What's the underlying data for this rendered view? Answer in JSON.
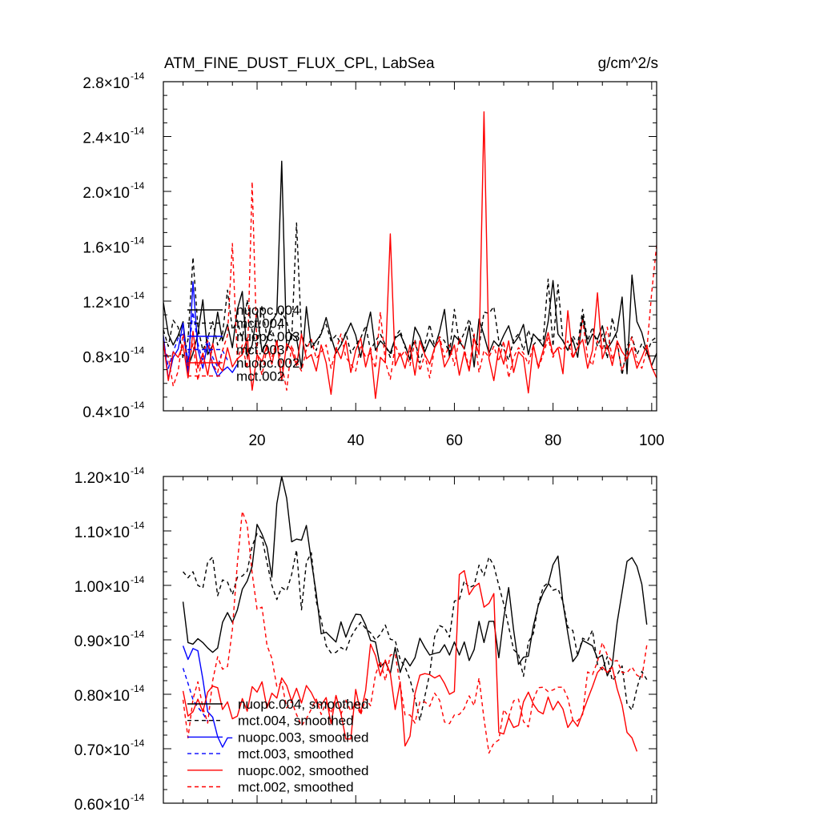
{
  "chart_data": [
    {
      "type": "line",
      "title": "ATM_FINE_DUST_FLUX_CPL, LabSea",
      "units": "g/cm^2/s",
      "xlim": [
        1,
        101
      ],
      "ylim": [
        0.4,
        2.8
      ],
      "y_exponent": "-14",
      "x_ticks": [
        20,
        40,
        60,
        80,
        100
      ],
      "x_tick_labels": [
        "20",
        "40",
        "60",
        "80",
        "100"
      ],
      "y_ticks": [
        0.4,
        0.8,
        1.2,
        1.6,
        2.0,
        2.4,
        2.8
      ],
      "y_tick_labels": [
        "0.4",
        "0.8",
        "1.2",
        "1.6",
        "2.0",
        "2.4",
        "2.8"
      ],
      "legend_position": "left-middle",
      "series": [
        {
          "name": "nuopc.004",
          "color": "#000000",
          "dash": "solid",
          "x0": 1,
          "values": [
            1.19,
            0.96,
            0.88,
            0.95,
            1.05,
            0.72,
            0.82,
            0.96,
            1.21,
            0.81,
            0.88,
            1.12,
            0.91,
            1.03,
            0.86,
            1.14,
            1.27,
            0.79,
            0.88,
            1.12,
            0.83,
            0.91,
            1.05,
            1.11,
            2.22,
            0.84,
            0.96,
            0.93,
            0.71,
            1.16,
            0.86,
            0.91,
            0.96,
            1.08,
            0.94,
            0.82,
            0.88,
            0.96,
            1.04,
            0.95,
            0.79,
            0.97,
            1.12,
            0.84,
            0.91,
            0.87,
            0.82,
            0.93,
            0.96,
            0.88,
            0.77,
            1.01,
            0.94,
            0.83,
            0.92,
            0.86,
            0.98,
            1.14,
            0.79,
            0.95,
            0.91,
            0.85,
            1.02,
            0.72,
            1.07,
            0.95,
            0.82,
            0.91,
            0.87,
            0.95,
            1.02,
            0.89,
            0.94,
            1.03,
            0.81,
            0.96,
            0.92,
            0.87,
            1.05,
            1.35,
            0.96,
            0.91,
            0.84,
            0.92,
            0.79,
            1.09,
            0.88,
            0.96,
            0.92,
            1.02,
            0.85,
            0.91,
            0.98,
            1.23,
            0.67,
            1.39,
            1.05,
            0.97,
            0.83,
            0.73,
            0.82
          ]
        },
        {
          "name": "mct.004",
          "color": "#000000",
          "dash": "dashed",
          "x0": 1,
          "values": [
            0.99,
            0.87,
            1.06,
            1.01,
            0.78,
            0.92,
            1.52,
            1.01,
            0.84,
            0.93,
            1.05,
            0.88,
            0.96,
            1.28,
            0.99,
            1.06,
            0.91,
            1.21,
            0.98,
            0.86,
            1.17,
            0.93,
            0.99,
            0.88,
            1.12,
            1.05,
            0.91,
            1.77,
            0.95,
            0.87,
            0.92,
            0.84,
            0.98,
            1.03,
            0.91,
            0.95,
            0.89,
            0.97,
            0.82,
            0.88,
            0.93,
            1.02,
            0.84,
            0.91,
            0.96,
            0.88,
            0.79,
            0.94,
            0.99,
            0.86,
            0.83,
            0.92,
            0.75,
            0.88,
            1.03,
            0.87,
            0.94,
            0.91,
            0.82,
            1.14,
            0.89,
            0.97,
            1.07,
            0.93,
            0.86,
            1.12,
            1.11,
            1.16,
            0.91,
            0.85,
            0.77,
            0.92,
            0.96,
            0.84,
            0.99,
            0.88,
            0.92,
            0.91,
            1.36,
            0.87,
            1.32,
            0.91,
            0.84,
            0.95,
            0.88,
            1.14,
            0.91,
            1.01,
            0.87,
            0.96,
            0.78,
            1.08,
            0.91,
            0.66,
            0.87,
            0.94,
            0.81,
            0.89,
            0.82,
            0.91,
            0.94
          ]
        },
        {
          "name": "nuopc.003",
          "color": "#0000ff",
          "dash": "solid",
          "x0": 1,
          "values": [
            0.95,
            0.63,
            0.79,
            0.85,
            1.04,
            0.66,
            1.34,
            0.85,
            0.71,
            0.89,
            0.73,
            0.65,
            0.69,
            0.72,
            0.68,
            0.74
          ]
        },
        {
          "name": "mct.003",
          "color": "#0000ff",
          "dash": "dashed",
          "x0": 1,
          "values": [
            0.92,
            0.71,
            0.83,
            0.93,
            0.96,
            0.77,
            1.12,
            0.89,
            0.76,
            0.94,
            0.79,
            0.72,
            0.84,
            0.77
          ]
        },
        {
          "name": "nuopc.002",
          "color": "#ff0000",
          "dash": "solid",
          "x0": 1,
          "values": [
            0.91,
            0.62,
            0.83,
            0.79,
            0.88,
            0.64,
            0.98,
            0.71,
            0.82,
            0.66,
            0.89,
            0.74,
            0.69,
            0.86,
            0.72,
            0.78,
            0.81,
            0.93,
            0.55,
            0.81,
            0.76,
            0.88,
            0.74,
            0.91,
            0.62,
            0.89,
            0.84,
            0.73,
            0.96,
            0.78,
            0.81,
            0.69,
            0.88,
            0.75,
            0.52,
            0.86,
            0.78,
            0.91,
            0.68,
            0.84,
            0.93,
            0.72,
            0.86,
            0.49,
            0.79,
            0.75,
            1.69,
            0.73,
            0.82,
            0.71,
            0.88,
            0.66,
            0.91,
            0.81,
            0.74,
            0.86,
            0.92,
            0.72,
            0.79,
            0.88,
            0.66,
            0.83,
            0.69,
            0.93,
            0.81,
            2.58,
            0.78,
            0.62,
            0.86,
            0.74,
            0.91,
            0.68,
            0.83,
            0.79,
            0.53,
            0.88,
            0.72,
            0.84,
            0.97,
            0.81,
            0.86,
            0.67,
            1.13,
            0.79,
            0.86,
            0.92,
            0.71,
            0.84,
            1.26,
            0.78,
            0.88,
            0.73,
            0.91,
            0.83,
            0.78,
            0.86,
            0.71,
            0.79,
            0.88,
            0.72,
            0.64
          ]
        },
        {
          "name": "mct.002",
          "color": "#ff0000",
          "dash": "dashed",
          "x0": 1,
          "values": [
            0.86,
            0.79,
            0.58,
            0.69,
            0.96,
            0.73,
            0.89,
            0.62,
            0.81,
            0.91,
            0.74,
            0.68,
            0.84,
            0.95,
            1.62,
            0.77,
            0.88,
            0.71,
            2.07,
            0.82,
            0.66,
            0.86,
            0.79,
            0.91,
            0.74,
            0.55,
            0.88,
            0.76,
            0.69,
            0.85,
            0.92,
            0.78,
            0.83,
            0.88,
            0.71,
            0.84,
            0.96,
            0.79,
            0.74,
            0.69,
            0.88,
            0.79,
            0.82,
            0.71,
            1.12,
            0.76,
            0.63,
            0.88,
            0.79,
            0.84,
            0.73,
            0.91,
            0.69,
            0.81,
            0.64,
            0.86,
            0.94,
            0.79,
            0.88,
            0.73,
            0.93,
            0.85,
            0.71,
            0.96,
            0.68,
            0.84,
            0.79,
            0.87,
            0.76,
            0.91,
            0.64,
            0.79,
            0.86,
            0.82,
            0.74,
            0.88,
            0.71,
            0.81,
            0.93,
            0.79,
            0.87,
            0.84,
            0.91,
            0.78,
            0.86,
            1.06,
            0.79,
            0.73,
            0.91,
            0.84,
            1.01,
            0.77,
            0.88,
            0.69,
            0.82,
            0.94,
            0.76,
            0.71,
            0.84,
            1.26,
            1.61
          ]
        }
      ]
    },
    {
      "type": "line",
      "title": "",
      "xlim": [
        1,
        101
      ],
      "ylim": [
        0.6,
        1.2
      ],
      "y_exponent": "-14",
      "x_ticks": [
        20,
        40,
        60,
        80,
        100
      ],
      "y_ticks": [
        0.6,
        0.7,
        0.8,
        0.9,
        1.0,
        1.1,
        1.2
      ],
      "y_tick_labels": [
        "0.60",
        "0.70",
        "0.80",
        "0.90",
        "1.00",
        "1.10",
        "1.20"
      ],
      "legend_position": "bottom-left",
      "series": [
        {
          "name": "nuopc.004, smoothed",
          "color": "#000000",
          "dash": "solid",
          "x0": 5,
          "values": [
            0.97,
            0.895,
            0.892,
            0.902,
            0.895,
            0.885,
            0.877,
            0.885,
            0.932,
            0.95,
            0.932,
            0.955,
            0.993,
            1.008,
            1.035,
            1.112,
            1.094,
            1.07,
            1.015,
            1.15,
            1.2,
            1.16,
            1.08,
            1.085,
            1.083,
            1.11,
            1.045,
            0.984,
            0.911,
            0.914,
            0.905,
            0.896,
            0.933,
            0.905,
            0.929,
            0.947,
            0.946,
            0.927,
            0.899,
            0.896,
            0.85,
            0.86,
            0.838,
            0.886,
            0.84,
            0.866,
            0.852,
            0.867,
            0.903,
            0.886,
            0.872,
            0.875,
            0.877,
            0.891,
            0.872,
            0.896,
            0.872,
            0.896,
            0.862,
            0.882,
            0.934,
            0.895,
            0.934,
            0.934,
            0.867,
            0.94,
            0.996,
            0.918,
            0.855,
            0.868,
            0.87,
            0.925,
            0.963,
            0.986,
            1.002,
            1.038,
            1.054,
            0.968,
            0.912,
            0.86,
            0.872,
            0.899,
            0.894,
            0.889,
            0.866,
            0.872,
            0.834,
            0.854,
            0.932,
            0.988,
            1.044,
            1.051,
            1.035,
            1.002,
            0.928
          ]
        },
        {
          "name": "mct.004, smoothed",
          "color": "#000000",
          "dash": "dashed",
          "x0": 5,
          "values": [
            1.025,
            1.014,
            1.025,
            1.0,
            0.995,
            1.043,
            1.052,
            0.981,
            1.01,
            1.006,
            0.983,
            1.015,
            1.017,
            1.026,
            1.072,
            1.095,
            1.087,
            1.042,
            1.0,
            0.974,
            0.996,
            0.99,
            1.02,
            1.065,
            0.955,
            1.042,
            1.06,
            0.97,
            0.937,
            0.889,
            0.876,
            0.877,
            0.886,
            0.88,
            0.905,
            0.92,
            0.932,
            0.921,
            0.913,
            0.9,
            0.91,
            0.927,
            0.901,
            0.899,
            0.864,
            0.85,
            0.827,
            0.793,
            0.752,
            0.796,
            0.838,
            0.906,
            0.926,
            0.922,
            0.905,
            0.971,
            0.974,
            1.008,
            0.996,
            1.0,
            1.037,
            1.018,
            1.052,
            1.036,
            1.0,
            0.966,
            0.924,
            0.882,
            0.873,
            0.833,
            0.896,
            0.911,
            0.965,
            0.997,
            1.005,
            0.991,
            0.994,
            0.97,
            0.923,
            0.917,
            0.871,
            0.903,
            0.898,
            0.918,
            0.855,
            0.845,
            0.869,
            0.825,
            0.836,
            0.852,
            0.783,
            0.771,
            0.811,
            0.842,
            0.827
          ]
        },
        {
          "name": "nuopc.003, smoothed",
          "color": "#0000ff",
          "dash": "solid",
          "x0": 5,
          "values": [
            0.889,
            0.864,
            0.884,
            0.88,
            0.828,
            0.768,
            0.758,
            0.722,
            0.703,
            0.72,
            0.72
          ]
        },
        {
          "name": "mct.003, smoothed",
          "color": "#0000ff",
          "dash": "dashed",
          "x0": 5,
          "values": [
            0.848,
            0.82,
            0.79,
            0.776,
            0.765,
            0.75
          ]
        },
        {
          "name": "nuopc.002, smoothed",
          "color": "#ff0000",
          "dash": "solid",
          "x0": 5,
          "values": [
            0.806,
            0.76,
            0.768,
            0.791,
            0.768,
            0.804,
            0.815,
            0.812,
            0.772,
            0.786,
            0.755,
            0.76,
            0.792,
            0.769,
            0.814,
            0.804,
            0.823,
            0.775,
            0.802,
            0.793,
            0.83,
            0.816,
            0.787,
            0.811,
            0.784,
            0.816,
            0.803,
            0.784,
            0.78,
            0.794,
            0.746,
            0.798,
            0.764,
            0.718,
            0.718,
            0.809,
            0.765,
            0.807,
            0.892,
            0.871,
            0.834,
            0.863,
            0.838,
            0.772,
            0.823,
            0.705,
            0.723,
            0.801,
            0.835,
            0.838,
            0.836,
            0.83,
            0.835,
            0.82,
            0.8,
            0.805,
            1.02,
            1.027,
            0.983,
            0.997,
            1.004,
            0.96,
            0.967,
            0.985,
            0.73,
            0.727,
            0.757,
            0.739,
            0.743,
            0.786,
            0.804,
            0.782,
            0.769,
            0.764,
            0.795,
            0.771,
            0.787,
            0.773,
            0.739,
            0.753,
            0.741,
            0.766,
            0.791,
            0.814,
            0.84,
            0.85,
            0.84,
            0.85,
            0.81,
            0.78,
            0.73,
            0.72,
            0.695
          ]
        },
        {
          "name": "mct.002, smoothed",
          "color": "#ff0000",
          "dash": "dashed",
          "x0": 5,
          "values": [
            0.79,
            0.72,
            0.791,
            0.823,
            0.776,
            0.747,
            0.825,
            0.869,
            0.846,
            0.851,
            0.919,
            1.04,
            1.136,
            1.111,
            1.022,
            0.956,
            0.96,
            0.89,
            0.866,
            0.814,
            0.822,
            0.775,
            0.787,
            0.763,
            0.742,
            0.755,
            0.773,
            0.791,
            0.763,
            0.785,
            0.765,
            0.797,
            0.763,
            0.789,
            0.769,
            0.784,
            0.762,
            0.792,
            0.779,
            0.836,
            0.861,
            0.825,
            0.872,
            0.874,
            0.818,
            0.762,
            0.762,
            0.747,
            0.786,
            0.786,
            0.778,
            0.802,
            0.789,
            0.749,
            0.746,
            0.762,
            0.763,
            0.774,
            0.797,
            0.779,
            0.83,
            0.755,
            0.692,
            0.71,
            0.716,
            0.772,
            0.758,
            0.788,
            0.791,
            0.75,
            0.74,
            0.79,
            0.812,
            0.813,
            0.805,
            0.808,
            0.813,
            0.813,
            0.793,
            0.753,
            0.751,
            0.763,
            0.841,
            0.836,
            0.86,
            0.895,
            0.872,
            0.86,
            0.862,
            0.84,
            0.84,
            0.85,
            0.835,
            0.83,
            0.89
          ]
        }
      ]
    }
  ]
}
